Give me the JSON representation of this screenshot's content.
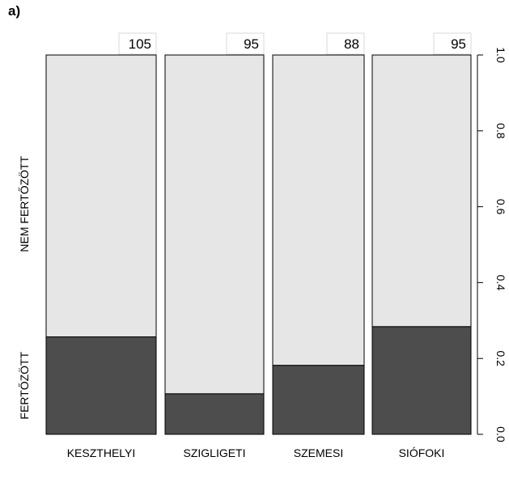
{
  "panel_label": "a)",
  "chart_data": {
    "type": "bar",
    "subtype": "stacked-proportion (spineplot)",
    "categories": [
      "KESZTHELYI",
      "SZIGLIGETI",
      "SZEMESI",
      "SIÓFOKI"
    ],
    "counts": [
      "105",
      "95",
      "88",
      "95"
    ],
    "series": [
      {
        "name": "FERTŐZÖTT",
        "values": [
          0.257,
          0.107,
          0.182,
          0.284
        ],
        "color": "#4d4d4d"
      },
      {
        "name": "NEM FERTŐZÖTT",
        "values": [
          0.743,
          0.893,
          0.818,
          0.716
        ],
        "color": "#e6e6e6"
      }
    ],
    "y_axis": {
      "position": "right",
      "ylim": [
        0,
        1
      ],
      "ticks": [
        "0.0",
        "0.2",
        "0.4",
        "0.6",
        "0.8",
        "1.0"
      ]
    },
    "grid": false,
    "legend": "none"
  }
}
